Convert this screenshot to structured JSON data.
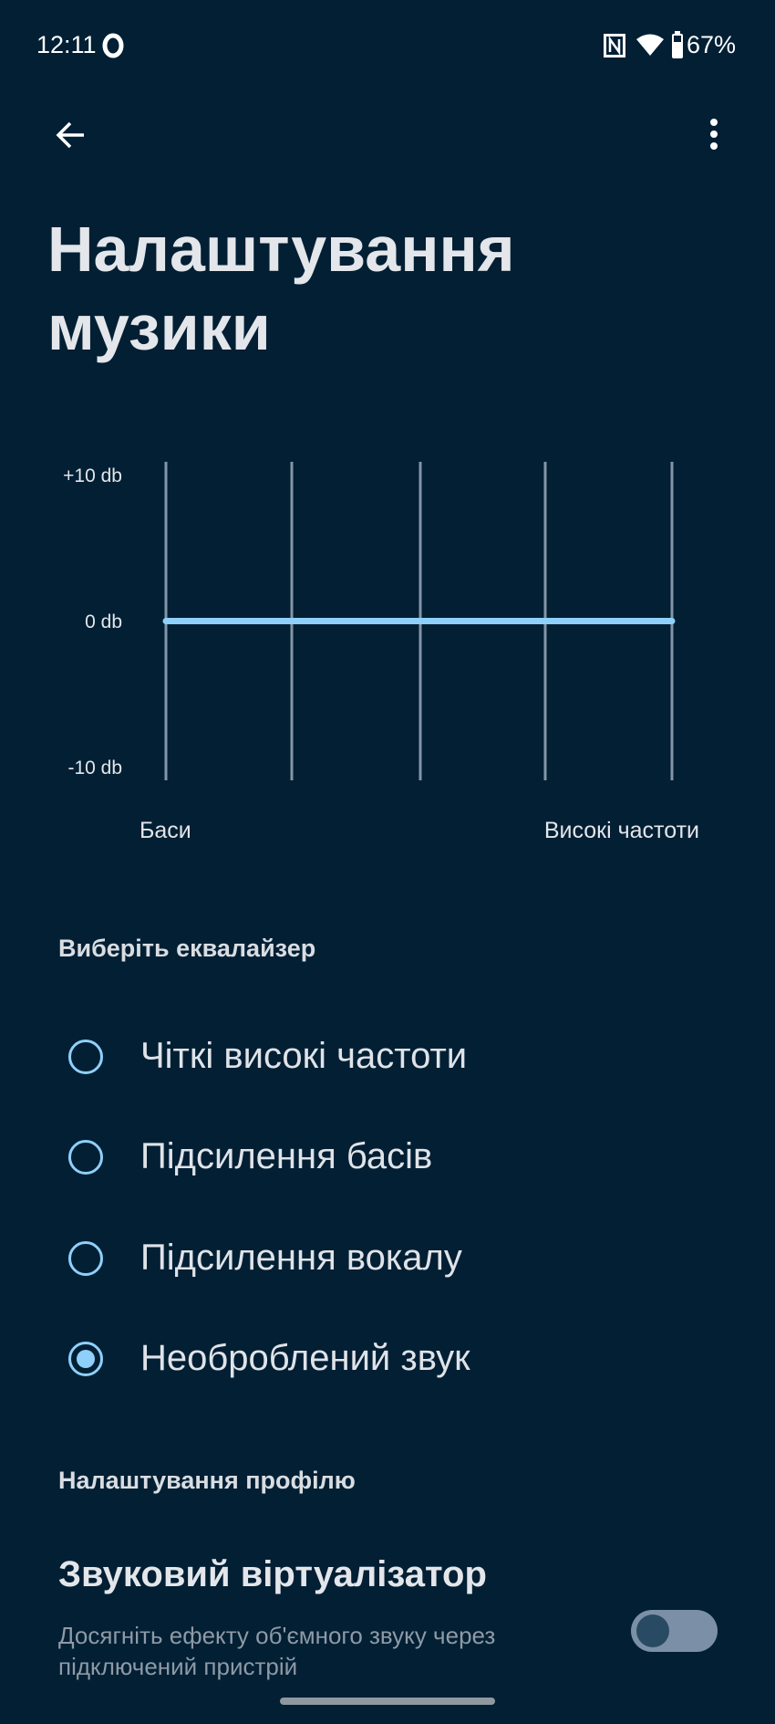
{
  "status_bar": {
    "time": "12:11",
    "battery": "67%",
    "icons": [
      "opera-icon",
      "nfc-icon",
      "wifi-icon",
      "battery-icon"
    ]
  },
  "toolbar": {
    "back_icon": "arrow-left-icon",
    "menu_icon": "more-vert-icon"
  },
  "page_title_line1": "Налаштування",
  "page_title_line2": "музики",
  "equalizer": {
    "y_labels": [
      "+10 db",
      "0 db",
      "-10 db"
    ],
    "x_label_left": "Баси",
    "x_label_right": "Високі частоти",
    "bands": 5,
    "levels_db": [
      0,
      0,
      0,
      0,
      0
    ],
    "ylim": [
      -10,
      10
    ],
    "accent": "#8fd0fa"
  },
  "equalizer_section": {
    "heading": "Виберіть еквалайзер",
    "options": [
      {
        "label": "Чіткі високі частоти",
        "selected": false
      },
      {
        "label": "Підсилення басів",
        "selected": false
      },
      {
        "label": "Підсилення вокалу",
        "selected": false
      },
      {
        "label": "Необроблений звук",
        "selected": true
      }
    ]
  },
  "profile_section": {
    "heading": "Налаштування профілю",
    "virtualizer": {
      "title": "Звуковий віртуалізатор",
      "description_line1": "Досягніть ефекту об'ємного звуку через",
      "description_line2": "підключений пристрій",
      "enabled": false
    }
  },
  "colors": {
    "background": "#021f34",
    "accent": "#8fd0fa"
  }
}
